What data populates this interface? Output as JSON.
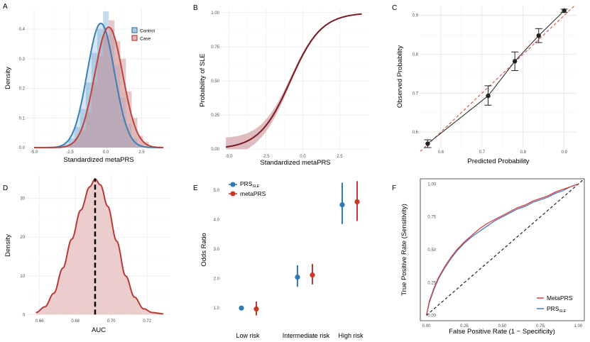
{
  "chart_data": [
    {
      "panel": "A",
      "type": "area",
      "xlabel": "Standardized metaPRS",
      "ylabel": "Density",
      "xlim": [
        -5.5,
        4.5
      ],
      "ylim": [
        0,
        0.47
      ],
      "xticks": [
        "-5.0",
        "-2.5",
        "0.0",
        "2.5"
      ],
      "xtick_values": [
        -5,
        -2.5,
        0,
        2.5
      ],
      "yticks": [
        "0.0",
        "0.1",
        "0.2",
        "0.3",
        "0.4"
      ],
      "ytick_values": [
        0,
        0.1,
        0.2,
        0.3,
        0.4
      ],
      "legend": [
        "Control",
        "Case"
      ],
      "legend_position": "top-right",
      "series": [
        {
          "name": "Control",
          "color": "#3a7fb5",
          "mean": -0.35,
          "sd": 0.95,
          "hist_bins": [
            -3.0,
            -2.6,
            -2.2,
            -1.8,
            -1.4,
            -1.0,
            -0.6,
            -0.2,
            0.2,
            0.6,
            1.0,
            1.4,
            1.8,
            2.2
          ],
          "hist_density": [
            0.01,
            0.03,
            0.07,
            0.13,
            0.22,
            0.32,
            0.4,
            0.46,
            0.4,
            0.28,
            0.17,
            0.08,
            0.03,
            0.01
          ]
        },
        {
          "name": "Case",
          "color": "#c0403a",
          "mean": 0.2,
          "sd": 0.98,
          "hist_bins": [
            -2.6,
            -2.2,
            -1.8,
            -1.4,
            -1.0,
            -0.6,
            -0.2,
            0.2,
            0.6,
            1.0,
            1.4,
            1.8,
            2.2,
            2.6
          ],
          "hist_density": [
            0.01,
            0.03,
            0.06,
            0.12,
            0.22,
            0.31,
            0.38,
            0.43,
            0.36,
            0.3,
            0.19,
            0.1,
            0.04,
            0.02
          ]
        }
      ]
    },
    {
      "panel": "B",
      "type": "line",
      "xlabel": "Standardized metaPRS",
      "ylabel": "Probability of SLE",
      "xlim": [
        -5.5,
        4.5
      ],
      "ylim": [
        -0.02,
        1.03
      ],
      "xticks": [
        "-5.0",
        "-2.5",
        "0.0",
        "2.5"
      ],
      "xtick_values": [
        -5,
        -2.5,
        0,
        2.5
      ],
      "yticks": [
        "0.00",
        "0.25",
        "0.50",
        "0.75",
        "1.00"
      ],
      "ytick_values": [
        0,
        0.25,
        0.5,
        0.75,
        1.0
      ],
      "curve": {
        "type": "logistic",
        "intercept": 0.8,
        "slope": 0.95,
        "x_range": [
          -5.2,
          4.0
        ]
      },
      "line_color": "#7a1a22",
      "ribbon_color": "#d8b0b4"
    },
    {
      "panel": "C",
      "type": "scatter",
      "xlabel": "Predicted Probability",
      "ylabel": "Observed Probability",
      "xlim": [
        0.55,
        0.93
      ],
      "ylim": [
        0.56,
        0.925
      ],
      "xticks": [
        "0.6",
        "0.7",
        "0.8",
        "0.9"
      ],
      "xtick_values": [
        0.6,
        0.7,
        0.8,
        0.9
      ],
      "yticks": [
        "0.6",
        "0.7",
        "0.8",
        "0.9"
      ],
      "ytick_values": [
        0.6,
        0.7,
        0.8,
        0.9
      ],
      "points": [
        {
          "x": 0.568,
          "y": 0.57,
          "lo": 0.56,
          "hi": 0.58
        },
        {
          "x": 0.715,
          "y": 0.693,
          "lo": 0.669,
          "hi": 0.719
        },
        {
          "x": 0.78,
          "y": 0.782,
          "lo": 0.758,
          "hi": 0.806
        },
        {
          "x": 0.838,
          "y": 0.848,
          "lo": 0.83,
          "hi": 0.866
        },
        {
          "x": 0.9,
          "y": 0.912,
          "lo": 0.908,
          "hi": 0.916
        }
      ],
      "reference_line": "y = x (dashed red)"
    },
    {
      "panel": "D",
      "type": "area",
      "xlabel": "AUC",
      "ylabel": "Density",
      "xlim": [
        0.653,
        0.733
      ],
      "ylim": [
        -0.5,
        36
      ],
      "xticks": [
        "0.66",
        "0.68",
        "0.70",
        "0.72"
      ],
      "xtick_values": [
        0.66,
        0.68,
        0.7,
        0.72
      ],
      "yticks": [
        "0",
        "10",
        "20",
        "30"
      ],
      "ytick_values": [
        0,
        10,
        20,
        30
      ],
      "density_x": [
        0.658,
        0.663,
        0.668,
        0.673,
        0.678,
        0.683,
        0.688,
        0.691,
        0.694,
        0.698,
        0.703,
        0.708,
        0.713,
        0.718,
        0.723,
        0.729
      ],
      "density_y": [
        0.5,
        2.0,
        5.5,
        12.0,
        19.5,
        27.0,
        33.0,
        35.0,
        33.5,
        28.0,
        19.0,
        10.0,
        4.5,
        1.5,
        0.5,
        0.2
      ],
      "mean_line_x": 0.691
    },
    {
      "panel": "E",
      "type": "scatter",
      "xlabel": "",
      "ylabel": "Odds Ratio",
      "ylim": [
        0.5,
        5.5
      ],
      "yticks": [
        "1.0",
        "2.0",
        "3.0",
        "4.0",
        "5.0"
      ],
      "ytick_values": [
        1,
        2,
        3,
        4,
        5
      ],
      "categories": [
        "Low risk",
        "Intermediate risk",
        "High risk"
      ],
      "legend_position": "top-left",
      "series": [
        {
          "name": "PRS",
          "name_subscript": "SLE",
          "color": "#2e7ab6",
          "values": [
            1.0,
            2.05,
            4.5
          ],
          "lo": [
            1.0,
            1.72,
            3.85
          ],
          "hi": [
            1.0,
            2.45,
            5.25
          ]
        },
        {
          "name": "metaPRS",
          "color": "#c0392b",
          "values": [
            0.97,
            2.12,
            4.6
          ],
          "lo": [
            0.75,
            1.8,
            3.95
          ],
          "hi": [
            1.22,
            2.5,
            5.3
          ]
        }
      ]
    },
    {
      "panel": "F",
      "type": "line",
      "xlabel": "False Positive Rate (1 − Specificity)",
      "ylabel": "True Positive Rate (Sensitivity)",
      "xlim": [
        -0.04,
        1.04
      ],
      "ylim": [
        -0.04,
        1.04
      ],
      "xticks": [
        "0.00",
        "0.25",
        "0.50",
        "0.75",
        "1.00"
      ],
      "xtick_values": [
        0,
        0.25,
        0.5,
        0.75,
        1.0
      ],
      "yticks": [
        "0.00",
        "0.25",
        "0.50",
        "0.75",
        "1.00"
      ],
      "ytick_values": [
        0,
        0.25,
        0.5,
        0.75,
        1.0
      ],
      "legend_position": "bottom-right",
      "series": [
        {
          "name": "MetaPRS",
          "color": "#d8403a",
          "x": [
            0,
            0.02,
            0.05,
            0.08,
            0.12,
            0.16,
            0.2,
            0.25,
            0.3,
            0.35,
            0.4,
            0.45,
            0.5,
            0.55,
            0.6,
            0.65,
            0.7,
            0.75,
            0.8,
            0.85,
            0.9,
            0.95,
            1.0
          ],
          "y": [
            0,
            0.11,
            0.21,
            0.29,
            0.37,
            0.44,
            0.5,
            0.56,
            0.61,
            0.66,
            0.7,
            0.73,
            0.76,
            0.79,
            0.82,
            0.84,
            0.87,
            0.89,
            0.91,
            0.94,
            0.96,
            0.98,
            1.0
          ]
        },
        {
          "name": "PRS",
          "name_subscript": "SLE",
          "color": "#4a78bd",
          "x": [
            0,
            0.02,
            0.05,
            0.08,
            0.12,
            0.16,
            0.2,
            0.25,
            0.3,
            0.35,
            0.4,
            0.45,
            0.5,
            0.55,
            0.6,
            0.65,
            0.7,
            0.75,
            0.8,
            0.85,
            0.9,
            0.95,
            1.0
          ],
          "y": [
            0,
            0.1,
            0.2,
            0.28,
            0.36,
            0.43,
            0.49,
            0.55,
            0.6,
            0.64,
            0.68,
            0.72,
            0.75,
            0.78,
            0.81,
            0.83,
            0.86,
            0.88,
            0.9,
            0.93,
            0.95,
            0.98,
            1.0
          ]
        }
      ]
    }
  ]
}
